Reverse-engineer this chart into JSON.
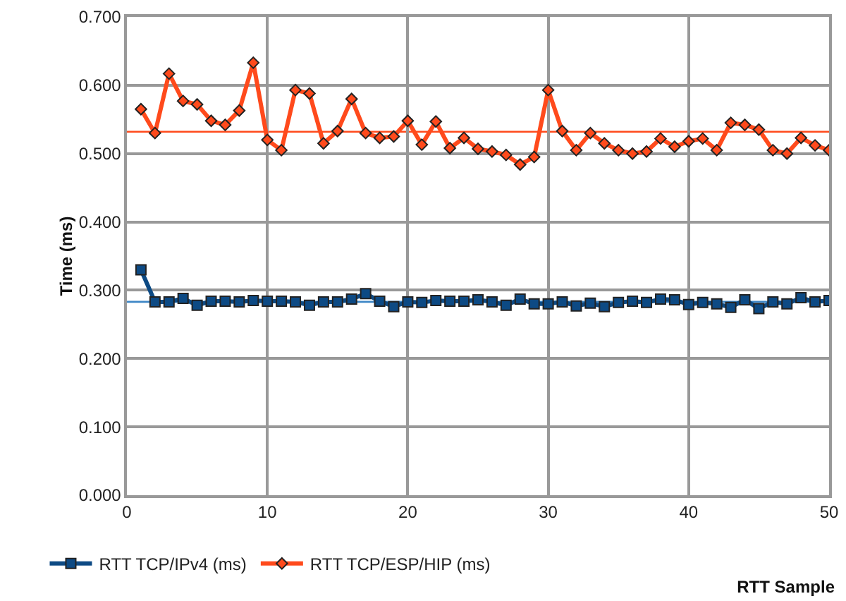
{
  "chart_data": {
    "type": "line",
    "xlabel": "RTT Sample",
    "ylabel": "Time (ms)",
    "x": [
      1,
      2,
      3,
      4,
      5,
      6,
      7,
      8,
      9,
      10,
      11,
      12,
      13,
      14,
      15,
      16,
      17,
      18,
      19,
      20,
      21,
      22,
      23,
      24,
      25,
      26,
      27,
      28,
      29,
      30,
      31,
      32,
      33,
      34,
      35,
      36,
      37,
      38,
      39,
      40,
      41,
      42,
      43,
      44,
      45,
      46,
      47,
      48,
      49,
      50
    ],
    "series": [
      {
        "name": "RTT TCP/IPv4 (ms)",
        "color": "#0d4a84",
        "marker": "square",
        "values": [
          0.33,
          0.283,
          0.283,
          0.288,
          0.278,
          0.284,
          0.284,
          0.283,
          0.285,
          0.284,
          0.284,
          0.283,
          0.278,
          0.283,
          0.283,
          0.287,
          0.295,
          0.284,
          0.276,
          0.283,
          0.282,
          0.285,
          0.284,
          0.284,
          0.286,
          0.283,
          0.278,
          0.287,
          0.28,
          0.28,
          0.283,
          0.277,
          0.281,
          0.276,
          0.282,
          0.284,
          0.282,
          0.287,
          0.286,
          0.279,
          0.282,
          0.28,
          0.275,
          0.286,
          0.273,
          0.283,
          0.28,
          0.289,
          0.283,
          0.285
        ]
      },
      {
        "name": "RTT TCP/ESP/HIP (ms)",
        "color": "#ff4a1c",
        "marker": "diamond",
        "values": [
          0.565,
          0.53,
          0.617,
          0.577,
          0.572,
          0.548,
          0.542,
          0.563,
          0.633,
          0.52,
          0.505,
          0.593,
          0.588,
          0.515,
          0.533,
          0.58,
          0.53,
          0.523,
          0.525,
          0.548,
          0.513,
          0.547,
          0.508,
          0.523,
          0.507,
          0.503,
          0.498,
          0.484,
          0.495,
          0.593,
          0.533,
          0.505,
          0.53,
          0.515,
          0.505,
          0.5,
          0.503,
          0.522,
          0.51,
          0.518,
          0.522,
          0.505,
          0.545,
          0.542,
          0.535,
          0.505,
          0.5,
          0.523,
          0.512,
          0.505
        ]
      }
    ],
    "ref_lines": [
      {
        "axis": "y",
        "value": 0.283,
        "color": "#3d86c6"
      },
      {
        "axis": "y",
        "value": 0.532,
        "color": "#ff4a1c"
      }
    ],
    "xlim": [
      0,
      50
    ],
    "xticks": [
      0,
      10,
      20,
      30,
      40,
      50
    ],
    "ylim": [
      0,
      0.7
    ],
    "yticks": [
      {
        "value": 0,
        "label": "0.000"
      },
      {
        "value": 0.1,
        "label": "0.100"
      },
      {
        "value": 0.2,
        "label": "0.200"
      },
      {
        "value": 0.3,
        "label": "0.300"
      },
      {
        "value": 0.4,
        "label": "0.400"
      },
      {
        "value": 0.5,
        "label": "0.500"
      },
      {
        "value": 0.6,
        "label": "0.600"
      },
      {
        "value": 0.7,
        "label": "0.700"
      }
    ],
    "grid": true,
    "legend": "bottom left",
    "line_style": "solid"
  }
}
